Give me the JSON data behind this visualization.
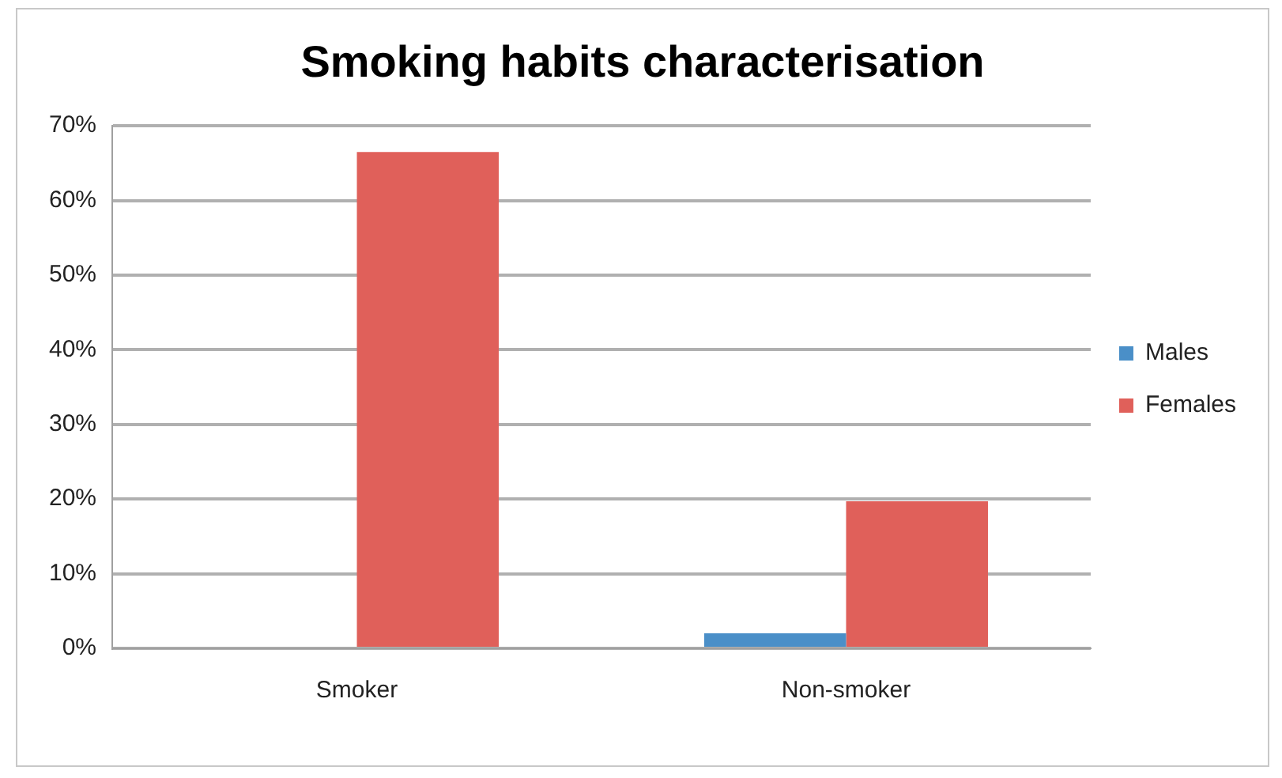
{
  "chart_data": {
    "type": "bar",
    "title": "Smoking habits characterisation",
    "categories": [
      "Smoker",
      "Non-smoker"
    ],
    "series": [
      {
        "name": "Males",
        "color": "#4a8fc8",
        "values": [
          0,
          2
        ]
      },
      {
        "name": "Females",
        "color": "#e0605a",
        "values": [
          66.5,
          19.7
        ]
      }
    ],
    "ylim": [
      0,
      70
    ],
    "yticks": [
      {
        "value": 0,
        "label": "0%"
      },
      {
        "value": 10,
        "label": "10%"
      },
      {
        "value": 20,
        "label": "20%"
      },
      {
        "value": 30,
        "label": "30%"
      },
      {
        "value": 40,
        "label": "40%"
      },
      {
        "value": 50,
        "label": "50%"
      },
      {
        "value": 60,
        "label": "60%"
      },
      {
        "value": 70,
        "label": "70%"
      }
    ],
    "grid": "y",
    "legend": "right"
  }
}
